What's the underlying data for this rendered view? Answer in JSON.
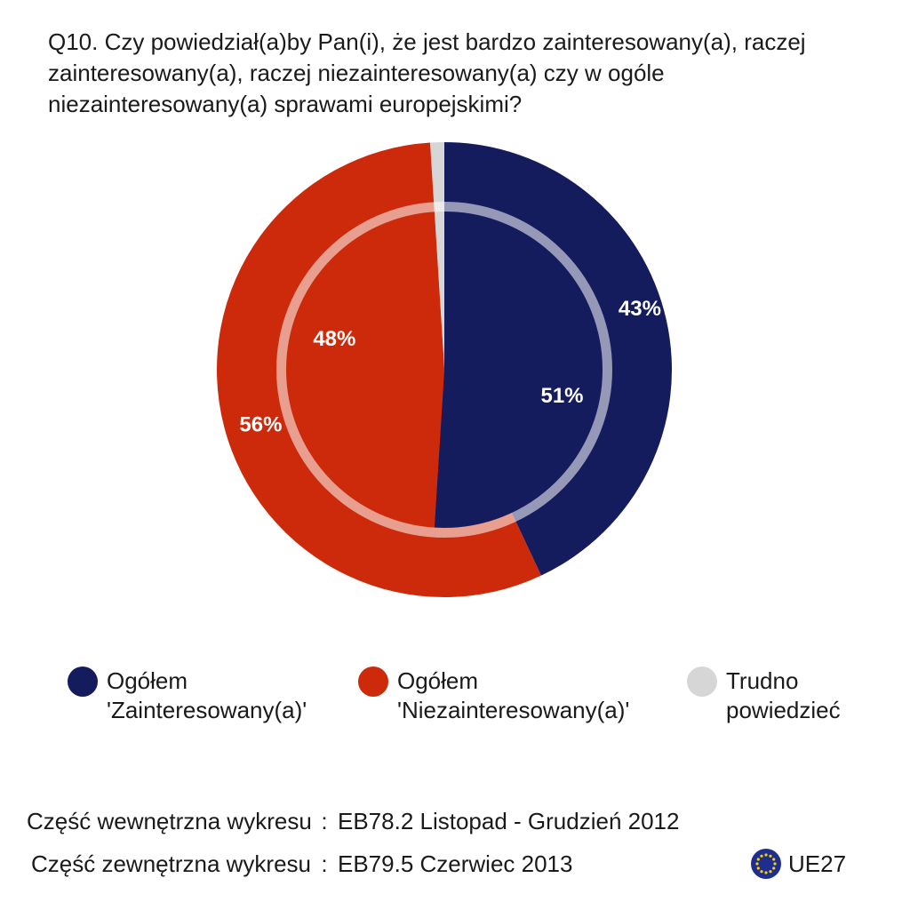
{
  "title": {
    "line1": "Q10. Czy powiedział(a)by Pan(i), że jest bardzo zainteresowany(a), raczej",
    "line2": "zainteresowany(a), raczej niezainteresowany(a) czy w ogóle",
    "line3": "niezainteresowany(a) sprawami europejskimi?"
  },
  "chart_data": {
    "type": "pie",
    "title": "Q10. Czy powiedział(a)by Pan(i), że jest bardzo zainteresowany(a), raczej zainteresowany(a), raczej niezainteresowany(a) czy w ogóle niezainteresowany(a) sprawami europejskimi?",
    "categories": [
      "Ogółem 'Zainteresowany(a)'",
      "Ogółem 'Niezainteresowany(a)'",
      "Trudno powiedzieć"
    ],
    "colors": [
      "#141c5e",
      "#cc2a0a",
      "#d6d6d6"
    ],
    "series": [
      {
        "name": "Część zewnętrzna wykresu",
        "ring": "outer",
        "values": [
          43,
          56,
          1
        ],
        "labels": [
          "43%",
          "56%",
          ""
        ]
      },
      {
        "name": "Część wewnętrzna wykresu",
        "ring": "inner",
        "values": [
          51,
          48,
          1
        ],
        "labels": [
          "51%",
          "48%",
          ""
        ]
      }
    ],
    "legend_position": "bottom"
  },
  "legend": [
    {
      "line1": "Ogółem",
      "line2": "'Zainteresowany(a)'",
      "color": "#141c5e"
    },
    {
      "line1": "Ogółem",
      "line2": "'Niezainteresowany(a)'",
      "color": "#cc2a0a"
    },
    {
      "line1": "Trudno",
      "line2": "powiedzieć",
      "color": "#d6d6d6"
    }
  ],
  "source": {
    "inner_label": "Część wewnętrzna wykresu",
    "inner_value": "EB78.2 Listopad - Grudzień 2012",
    "outer_label": "Część zewnętrzna wykresu",
    "outer_value": "EB79.5 Czerwiec 2013",
    "separator": ":"
  },
  "badge": {
    "text": "UE27",
    "icon": "eu-flag-icon"
  }
}
